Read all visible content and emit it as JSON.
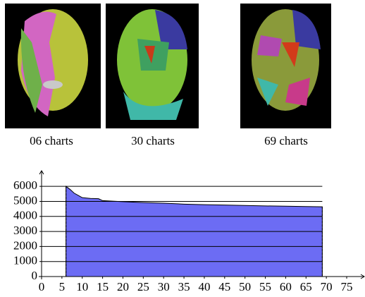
{
  "figure": {
    "captions": [
      "06 charts",
      "30 charts",
      "69 charts"
    ]
  },
  "chart_data": {
    "type": "area",
    "x": [
      6,
      7,
      8,
      9,
      10,
      12,
      14,
      15,
      20,
      25,
      30,
      35,
      40,
      45,
      50,
      55,
      60,
      65,
      69
    ],
    "series": [
      {
        "color": "#6c6cf4",
        "values": [
          6000,
          5800,
          5550,
          5400,
          5250,
          5200,
          5180,
          5050,
          4980,
          4920,
          4880,
          4820,
          4780,
          4760,
          4730,
          4700,
          4680,
          4660,
          4640
        ]
      }
    ],
    "xlim": [
      0,
      79.5
    ],
    "ylim": [
      0,
      6900
    ],
    "xticks": [
      0,
      5,
      10,
      15,
      20,
      25,
      30,
      35,
      40,
      45,
      50,
      55,
      60,
      65,
      70,
      75
    ],
    "yticks": [
      0,
      1000,
      2000,
      3000,
      4000,
      5000,
      6000
    ],
    "grid": true
  }
}
